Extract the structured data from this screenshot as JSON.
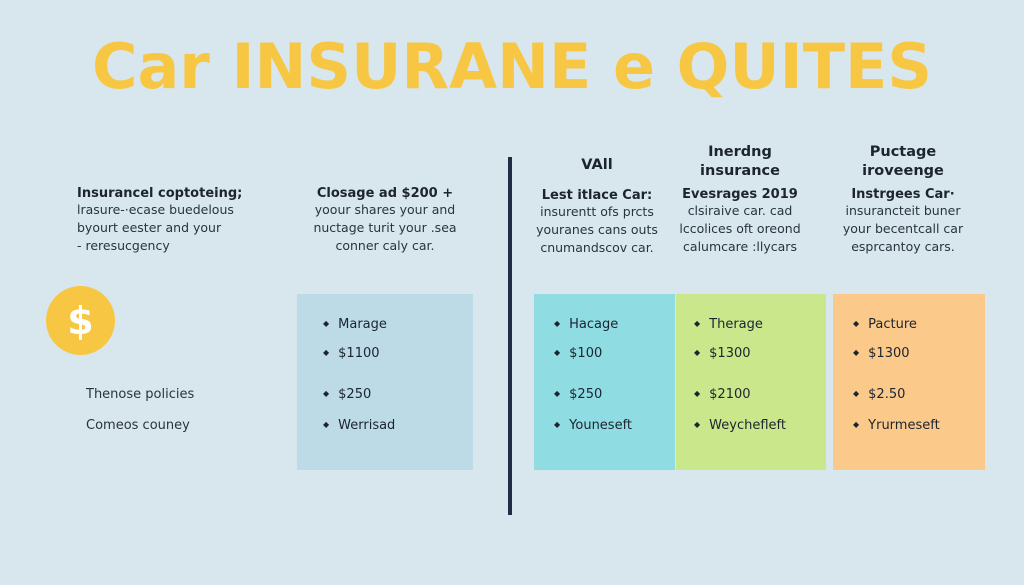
{
  "title": "Car INSURANE e QUITES",
  "left": {
    "head": "Insurancel coptoteing;",
    "lines": [
      "lrasure-·ecase buedelous",
      "byourt eester and your",
      "- reresucgency"
    ]
  },
  "mid": {
    "head": "Closage ad $200 +",
    "lines": [
      "yoour shares your and",
      "nuctage turit your .sea",
      "conner caly car."
    ]
  },
  "cols": [
    {
      "title": "VAll",
      "head": "Lest itlace Car:",
      "lines": [
        "insurentt ofs prcts",
        "youranes cans outs",
        "cnumandscov car."
      ]
    },
    {
      "title": "Inerdng insurance",
      "head": "Evesrages 2019",
      "lines": [
        "clsiraive car. cad",
        "lccolices oft oreond",
        "calumcare :llycars"
      ]
    },
    {
      "title": "Puctage iroveenge",
      "head": "Instrgees Car·",
      "lines": [
        "insurancteit buner",
        "your becentcall car",
        "esprcantoy cars."
      ]
    }
  ],
  "dollar_icon": "$",
  "side_labels": [
    "Thenose policies",
    "Comeos couney"
  ],
  "boxes": [
    {
      "color": "#bcdbe6",
      "items": [
        "Marage",
        "$1100",
        "$250",
        "Werrisad"
      ]
    },
    {
      "color": "#8fdce2",
      "items": [
        "Hacage",
        "$100",
        "$250",
        "Youneseft"
      ]
    },
    {
      "color": "#cbe78c",
      "items": [
        "Therage",
        "$1300",
        "$2100",
        "Weychefleft"
      ]
    },
    {
      "color": "#fbca8b",
      "items": [
        "Pacture",
        "$1300",
        "$2.50",
        "Yrurmeseft"
      ]
    }
  ]
}
